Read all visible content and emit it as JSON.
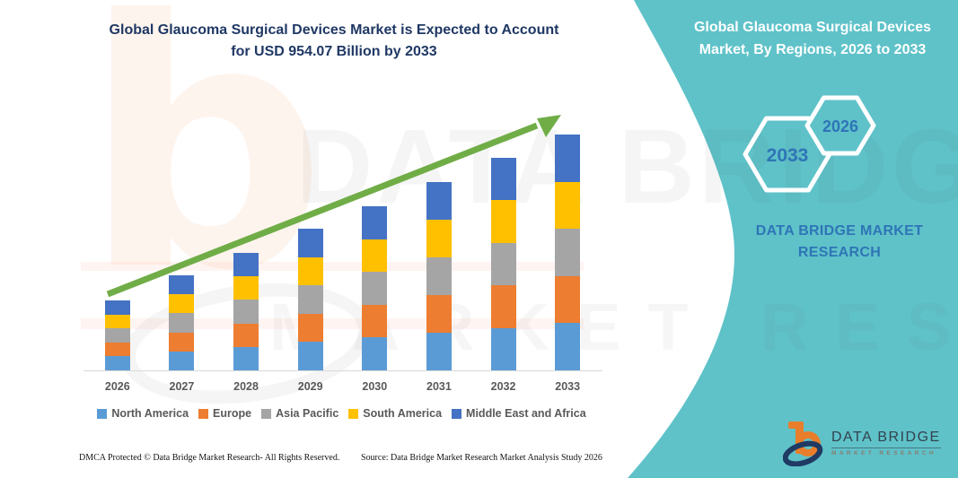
{
  "colors": {
    "teal": "#5FC2C9",
    "title_navy": "#1F3864",
    "panel_text_blue": "#2E75B6",
    "arrow_green": "#70AD47",
    "logo_orange": "#E87E2B",
    "logo_navy": "#1F3A63"
  },
  "header": {
    "title_line1": "Global Glaucoma Surgical Devices Market is Expected to Account",
    "title_line2": "for USD 954.07 Billion by 2033"
  },
  "side_panel": {
    "title": "Global Glaucoma Surgical Devices Market, By Regions, 2026 to 2033",
    "hexagon_back_label": "2033",
    "hexagon_front_label": "2026",
    "brand_line1": "DATA BRIDGE MARKET",
    "brand_line2": "RESEARCH"
  },
  "chart_data": {
    "type": "bar",
    "stacked": true,
    "title": "Global Glaucoma Surgical Devices Market, By Regions, 2026 to 2033",
    "unit": "USD Billion",
    "categories": [
      "2026",
      "2027",
      "2028",
      "2029",
      "2030",
      "2031",
      "2032",
      "2033"
    ],
    "series": [
      {
        "name": "North America",
        "color": "#5B9BD5",
        "values": [
          56.6,
          77.0,
          95.0,
          114.6,
          132.8,
          152.4,
          171.9,
          190.8
        ]
      },
      {
        "name": "Europe",
        "color": "#ED7D31",
        "values": [
          56.6,
          77.0,
          95.0,
          114.6,
          132.8,
          152.4,
          171.9,
          190.8
        ]
      },
      {
        "name": "Asia Pacific",
        "color": "#A5A5A5",
        "values": [
          56.6,
          77.0,
          95.0,
          114.6,
          132.8,
          152.4,
          171.9,
          190.8
        ]
      },
      {
        "name": "South America",
        "color": "#FFC000",
        "values": [
          56.6,
          77.0,
          95.0,
          114.6,
          132.8,
          152.4,
          171.9,
          190.8
        ]
      },
      {
        "name": "Middle East and Africa",
        "color": "#4472C4",
        "values": [
          56.6,
          77.0,
          95.0,
          114.6,
          132.8,
          152.4,
          171.9,
          190.8
        ]
      }
    ],
    "ylim": [
      0,
      954.07
    ],
    "y_axis_visible": false,
    "grid": false,
    "legend_position": "bottom",
    "trend_arrow": true
  },
  "watermark": {
    "glyph": "b",
    "row1": "DATA BRIDGE",
    "row2": "MARKET RESEARCH"
  },
  "footer": {
    "dmca": "DMCA Protected © Data Bridge Market Research-  All Rights Reserved.",
    "source": "Source: Data Bridge Market Research  Market Analysis Study 2026"
  },
  "logo": {
    "brand": "DATA BRIDGE",
    "sub": "MARKET RESEARCH"
  }
}
